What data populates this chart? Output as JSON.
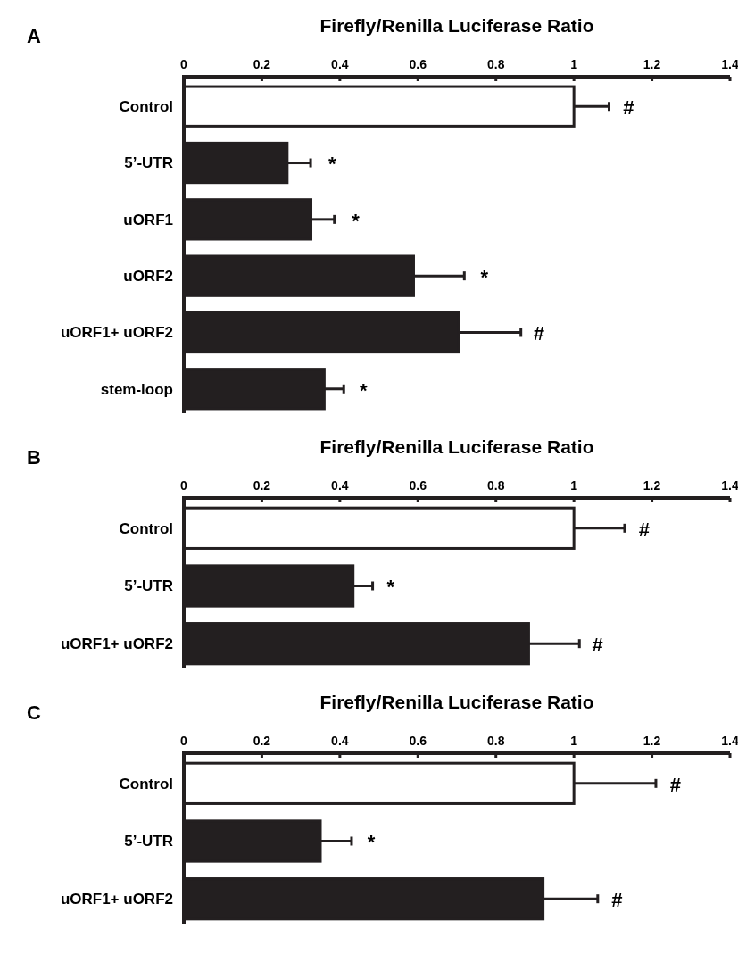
{
  "chart_data": [
    {
      "type": "bar",
      "orientation": "horizontal",
      "title": "A",
      "xlabel": "Firefly/Renilla Luciferase Ratio",
      "categories": [
        "Control",
        "5’-UTR",
        "uORF1",
        "uORF2",
        "uORF1+ uORF2",
        "stem-loop"
      ],
      "values": [
        1.0,
        0.265,
        0.326,
        0.589,
        0.704,
        0.36
      ],
      "errors": [
        [
          1.0,
          1.09
        ],
        [
          0.265,
          0.325
        ],
        [
          0.326,
          0.386
        ],
        [
          0.589,
          0.719
        ],
        [
          0.704,
          0.864
        ],
        [
          0.36,
          0.41
        ]
      ],
      "colors": [
        "#ffffff",
        "#231f20",
        "#231f20",
        "#231f20",
        "#231f20",
        "#231f20"
      ],
      "xlim": [
        0,
        1.4
      ],
      "xticks": [
        0,
        0.2,
        0.4,
        0.6,
        0.8,
        1,
        1.2,
        1.4
      ],
      "grid": false,
      "annotations": [
        {
          "text": "#",
          "x": 1.09,
          "y": "Control"
        },
        {
          "text": "*",
          "x": 0.33,
          "y": "5’-UTR"
        },
        {
          "text": "*",
          "x": 0.39,
          "y": "uORF1"
        },
        {
          "text": "*",
          "x": 0.72,
          "y": "uORF2"
        },
        {
          "text": "#",
          "x": 0.86,
          "y": "uORF1+ uORF2"
        },
        {
          "text": "*",
          "x": 0.41,
          "y": "stem-loop"
        }
      ]
    },
    {
      "type": "bar",
      "orientation": "horizontal",
      "title": "B",
      "xlabel": "Firefly/Renilla Luciferase Ratio",
      "categories": [
        "Control",
        "5’-UTR",
        "uORF1+ uORF2"
      ],
      "values": [
        1.0,
        0.434,
        0.884
      ],
      "errors": [
        [
          1.0,
          1.13
        ],
        [
          0.434,
          0.484
        ],
        [
          0.884,
          1.014
        ]
      ],
      "colors": [
        "#ffffff",
        "#231f20",
        "#231f20"
      ],
      "xlim": [
        0,
        1.4
      ],
      "xticks": [
        0,
        0.2,
        0.4,
        0.6,
        0.8,
        1,
        1.2,
        1.4
      ],
      "grid": false,
      "annotations": [
        {
          "text": "#",
          "x": 1.13,
          "y": "Control"
        },
        {
          "text": "*",
          "x": 0.48,
          "y": "5’-UTR"
        },
        {
          "text": "#",
          "x": 1.01,
          "y": "uORF1+ uORF2"
        }
      ]
    },
    {
      "type": "bar",
      "orientation": "horizontal",
      "title": "C",
      "xlabel": "Firefly/Renilla Luciferase Ratio",
      "categories": [
        "Control",
        "5’-UTR",
        "uORF1+ uORF2"
      ],
      "values": [
        1.0,
        0.35,
        0.921
      ],
      "errors": [
        [
          1.0,
          1.21
        ],
        [
          0.35,
          0.43
        ],
        [
          0.921,
          1.061
        ]
      ],
      "colors": [
        "#ffffff",
        "#231f20",
        "#231f20"
      ],
      "xlim": [
        0,
        1.4
      ],
      "xticks": [
        0,
        0.2,
        0.4,
        0.6,
        0.8,
        1,
        1.2,
        1.4
      ],
      "grid": false,
      "annotations": [
        {
          "text": "#",
          "x": 1.21,
          "y": "Control"
        },
        {
          "text": "*",
          "x": 0.43,
          "y": "5’-UTR"
        },
        {
          "text": "#",
          "x": 1.06,
          "y": "uORF1+ uORF2"
        }
      ]
    }
  ]
}
